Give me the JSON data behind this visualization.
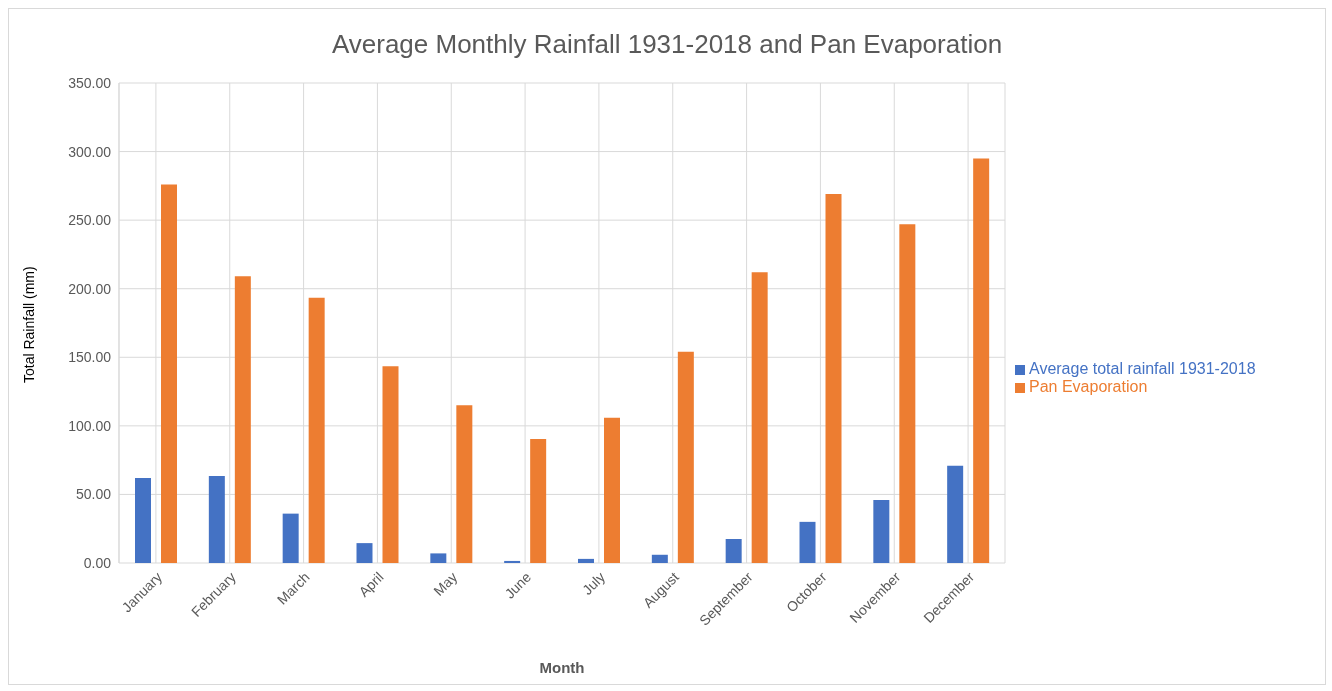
{
  "chart_data": {
    "type": "bar",
    "title": "Average Monthly Rainfall 1931-2018 and Pan Evaporation",
    "xlabel": "Month",
    "ylabel": "Total Rainfall (mm)",
    "categories": [
      "January",
      "February",
      "March",
      "April",
      "May",
      "June",
      "July",
      "August",
      "September",
      "October",
      "November",
      "December"
    ],
    "series": [
      {
        "name": "Average total rainfall 1931-2018",
        "color": "#4472c4",
        "values": [
          62,
          63.5,
          36,
          14.5,
          7,
          1.5,
          3,
          6,
          17.5,
          30,
          46,
          71
        ]
      },
      {
        "name": "Pan Evaporation",
        "color": "#ed7d31",
        "values": [
          276,
          209,
          193.5,
          143.5,
          115,
          90.5,
          106,
          154,
          212,
          269,
          247,
          295
        ]
      }
    ],
    "ylim": [
      0,
      350
    ],
    "yticks": [
      {
        "value": 0,
        "label": "0.00"
      },
      {
        "value": 50,
        "label": "50.00"
      },
      {
        "value": 100,
        "label": "100.00"
      },
      {
        "value": 150,
        "label": "150.00"
      },
      {
        "value": 200,
        "label": "200.00"
      },
      {
        "value": 250,
        "label": "250.00"
      },
      {
        "value": 300,
        "label": "300.00"
      },
      {
        "value": 350,
        "label": "350.00"
      }
    ],
    "grid": true,
    "legend": "right"
  }
}
